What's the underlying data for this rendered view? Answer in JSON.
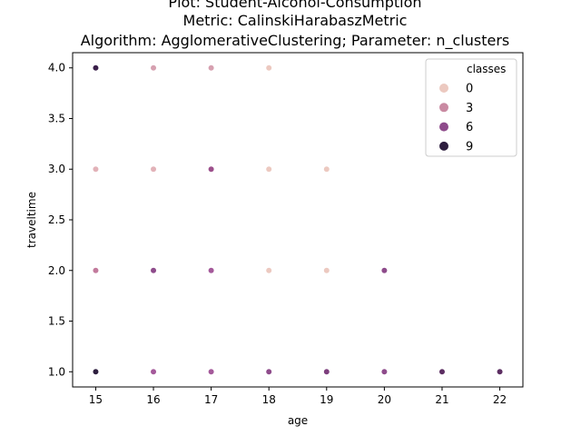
{
  "chart_data": {
    "type": "scatter",
    "title_lines": [
      "Plot: Student-Alcohol-Consumption",
      "Metric: CalinskiHarabaszMetric",
      "Algorithm: AgglomerativeClustering; Parameter: n_clusters"
    ],
    "xlabel": "age",
    "ylabel": "traveltime",
    "xlim": [
      14.6,
      22.4
    ],
    "ylim": [
      0.85,
      4.15
    ],
    "x_ticks": [
      15,
      16,
      17,
      18,
      19,
      20,
      21,
      22
    ],
    "y_ticks": [
      1.0,
      1.5,
      2.0,
      2.5,
      3.0,
      3.5,
      4.0
    ],
    "grid": false,
    "legend": {
      "title": "classes",
      "placement": "top-right",
      "entries": [
        {
          "label": "0",
          "color": "#ecc9c0"
        },
        {
          "label": "3",
          "color": "#c98aa2"
        },
        {
          "label": "6",
          "color": "#8e4b8b"
        },
        {
          "label": "9",
          "color": "#2d1e3e"
        }
      ]
    },
    "points": [
      {
        "x": 15,
        "y": 4,
        "color": "#3a1f4a"
      },
      {
        "x": 16,
        "y": 4,
        "color": "#d6a0b0"
      },
      {
        "x": 17,
        "y": 4,
        "color": "#d6a0b0"
      },
      {
        "x": 18,
        "y": 4,
        "color": "#ecc9c0"
      },
      {
        "x": 15,
        "y": 3,
        "color": "#e2b2b8"
      },
      {
        "x": 16,
        "y": 3,
        "color": "#e2b2b8"
      },
      {
        "x": 17,
        "y": 3,
        "color": "#9c4f8b"
      },
      {
        "x": 18,
        "y": 3,
        "color": "#ecc9c0"
      },
      {
        "x": 19,
        "y": 3,
        "color": "#ecc9c0"
      },
      {
        "x": 15,
        "y": 2,
        "color": "#c27a9c"
      },
      {
        "x": 16,
        "y": 2,
        "color": "#8e4b8b"
      },
      {
        "x": 17,
        "y": 2,
        "color": "#a4599a"
      },
      {
        "x": 18,
        "y": 2,
        "color": "#ecc9c0"
      },
      {
        "x": 19,
        "y": 2,
        "color": "#ecc9c0"
      },
      {
        "x": 20,
        "y": 2,
        "color": "#8e4b8b"
      },
      {
        "x": 15,
        "y": 1,
        "color": "#2d1e3e"
      },
      {
        "x": 16,
        "y": 1,
        "color": "#a4599a"
      },
      {
        "x": 17,
        "y": 1,
        "color": "#a4599a"
      },
      {
        "x": 18,
        "y": 1,
        "color": "#8e4b8b"
      },
      {
        "x": 19,
        "y": 1,
        "color": "#7d3f7d"
      },
      {
        "x": 20,
        "y": 1,
        "color": "#8e4b8b"
      },
      {
        "x": 21,
        "y": 1,
        "color": "#5c2e62"
      },
      {
        "x": 22,
        "y": 1,
        "color": "#5c2e62"
      }
    ]
  }
}
